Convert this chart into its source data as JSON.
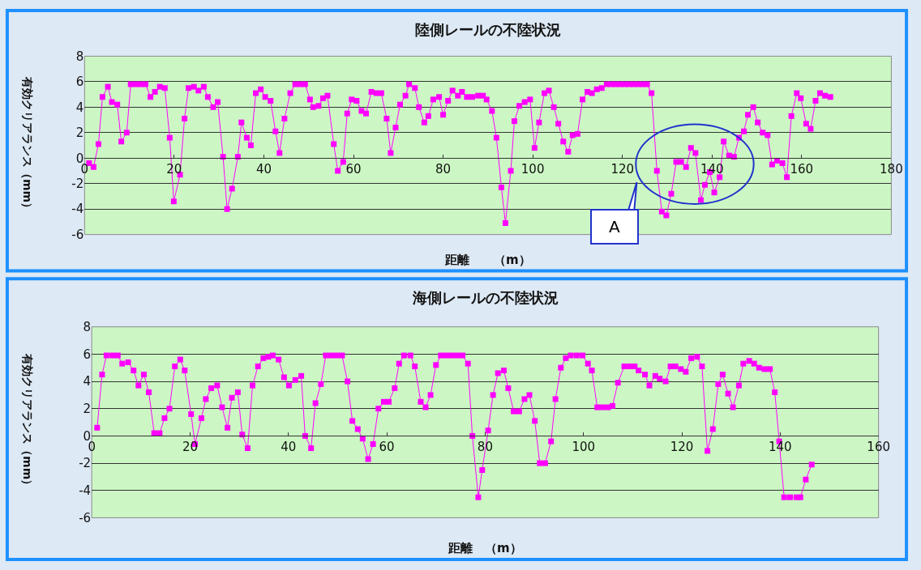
{
  "chart_data": [
    {
      "type": "line",
      "title": "陸側レールの不陸状況",
      "xlabel": "距離　　（m）",
      "ylabel": "有効クリアランス（mm）",
      "xlim": [
        0,
        180
      ],
      "xticks": [
        0,
        20,
        40,
        60,
        80,
        100,
        120,
        140,
        160,
        180
      ],
      "ylim": [
        -6,
        8
      ],
      "yticks": [
        -6,
        -4,
        -2,
        0,
        2,
        4,
        6,
        8
      ],
      "grid": "y",
      "marker": "square",
      "line_style": "solid",
      "annotations": [
        "A"
      ],
      "series": [
        {
          "color": "#ff00ff",
          "x": [
            1,
            2,
            3.1,
            4,
            5.2,
            6.1,
            7.3,
            8.2,
            9.4,
            10.3,
            11.4,
            12.5,
            13.6,
            14.7,
            15.7,
            16.8,
            17.9,
            19,
            19.9,
            21.3,
            22.3,
            23.2,
            24.4,
            25.4,
            26.6,
            27.5,
            28.7,
            29.7,
            30.9,
            31.8,
            32.9,
            34.2,
            35,
            36.2,
            37.1,
            38.2,
            39.3,
            40.3,
            41.5,
            42.6,
            43.5,
            44.6,
            45.9,
            47,
            48.1,
            49.2,
            50.3,
            51,
            52.2,
            53.2,
            54.2,
            55.6,
            56.5,
            57.7,
            58.6,
            59.6,
            60.7,
            61.8,
            62.8,
            64,
            65.1,
            66.2,
            67.4,
            68.3,
            69.4,
            70.4,
            71.6,
            72.4,
            73.7,
            74.6,
            75.8,
            76.7,
            77.8,
            79.1,
            80,
            81.1,
            82.1,
            83.3,
            84.2,
            85.3,
            86.5,
            87.8,
            88.9,
            89.7,
            90.9,
            91.9,
            93,
            93.9,
            95.1,
            95.9,
            97,
            98.2,
            99.4,
            100.4,
            101.4,
            102.6,
            103.6,
            104.7,
            105.7,
            106.8,
            107.9,
            108.9,
            110,
            111.1,
            112.2,
            113.2,
            114.3,
            115.4,
            116.5,
            117.5,
            118.5,
            119.5,
            120.5,
            121.5,
            122.5,
            123.5,
            124.5,
            125.5,
            126.5,
            127.7,
            128.8,
            129.8,
            130.9,
            132,
            133.1,
            134.2,
            135.3,
            136.3,
            137.5,
            138.4,
            139.5,
            140.5,
            141.7,
            142.6,
            143.8,
            144.9,
            146,
            147.1,
            148,
            149.2,
            150.2,
            151.3,
            152.4,
            153.4,
            154.5,
            155.7,
            156.7,
            157.7,
            158.9,
            159.8,
            161,
            162,
            163.1,
            164.1,
            165.2,
            166.4
          ],
          "values": [
            -0.4,
            -0.7,
            1.1,
            4.8,
            5.6,
            4.4,
            4.2,
            1.3,
            2.0,
            5.8,
            5.8,
            5.8,
            5.8,
            4.8,
            5.2,
            5.6,
            5.5,
            1.6,
            -3.4,
            -1.3,
            3.1,
            5.5,
            5.6,
            5.3,
            5.6,
            4.8,
            4.0,
            4.4,
            0.1,
            -4.0,
            -2.4,
            0.1,
            2.8,
            1.6,
            1.0,
            5.1,
            5.4,
            4.8,
            4.5,
            2.1,
            0.4,
            3.1,
            5.1,
            5.8,
            5.8,
            5.8,
            4.6,
            4.0,
            4.1,
            4.7,
            4.9,
            1.1,
            -1.0,
            -0.3,
            3.5,
            4.6,
            4.5,
            3.7,
            3.5,
            5.2,
            5.1,
            5.1,
            3.1,
            0.4,
            2.4,
            4.2,
            4.9,
            5.8,
            5.5,
            4.0,
            2.8,
            3.3,
            4.6,
            4.8,
            3.4,
            4.5,
            5.3,
            4.9,
            5.2,
            4.8,
            4.8,
            4.9,
            4.9,
            4.6,
            3.7,
            1.6,
            -2.3,
            -5.1,
            -1.0,
            2.9,
            4.1,
            4.4,
            4.6,
            0.8,
            2.8,
            5.1,
            5.3,
            4.0,
            2.7,
            1.3,
            0.5,
            1.8,
            1.9,
            4.6,
            5.2,
            5.1,
            5.4,
            5.5,
            5.8,
            5.8,
            5.8,
            5.8,
            5.8,
            5.8,
            5.8,
            5.8,
            5.8,
            5.8,
            5.1,
            -1.0,
            -4.2,
            -4.5,
            -2.8,
            -0.3,
            -0.3,
            -0.7,
            0.8,
            0.4,
            -3.3,
            -2.1,
            -1.1,
            -2.7,
            -1.5,
            1.3,
            0.2,
            0.1,
            1.6,
            2.1,
            3.4,
            4.0,
            2.8,
            2.0,
            1.8,
            -0.5,
            -0.2,
            -0.4,
            -1.5,
            3.3,
            5.1,
            4.7,
            2.7,
            2.3,
            4.5,
            5.1,
            4.9,
            4.8
          ]
        }
      ]
    },
    {
      "type": "line",
      "title": "海側レールの不陸状況",
      "xlabel": "距離　（m）",
      "ylabel": "有効クリアランス（mm）",
      "xlim": [
        0,
        160
      ],
      "xticks": [
        0,
        20,
        40,
        60,
        80,
        100,
        120,
        140,
        160
      ],
      "ylim": [
        -6,
        8
      ],
      "yticks": [
        -6,
        -4,
        -2,
        0,
        2,
        4,
        6,
        8
      ],
      "grid": "y",
      "marker": "square",
      "line_style": "solid",
      "series": [
        {
          "color": "#ff00ff",
          "x": [
            1.1,
            2.1,
            3,
            4.2,
            5.3,
            6.2,
            7.4,
            8.5,
            9.5,
            10.6,
            11.6,
            12.7,
            13.8,
            14.8,
            15.8,
            16.9,
            18,
            18.9,
            20.2,
            21,
            22.3,
            23.2,
            24.3,
            25.5,
            26.5,
            27.6,
            28.5,
            29.7,
            30.6,
            31.7,
            32.7,
            33.8,
            34.9,
            35.9,
            36.8,
            38,
            39.1,
            40.1,
            41.4,
            42.6,
            43.4,
            44.6,
            45.5,
            46.6,
            47.6,
            48.7,
            49.8,
            50.9,
            52,
            53,
            54.1,
            55.1,
            56.2,
            57.2,
            58.3,
            59.4,
            60.4,
            61.6,
            62.5,
            63.5,
            64.8,
            65.7,
            66.9,
            67.9,
            68.9,
            70,
            71,
            72.1,
            73.2,
            74.3,
            75.4,
            76.5,
            77.4,
            78.6,
            79.4,
            80.6,
            81.6,
            82.6,
            83.8,
            84.7,
            85.8,
            86.9,
            88,
            89,
            90.1,
            91.1,
            92.2,
            93.4,
            94.3,
            95.4,
            96.4,
            97.4,
            98.6,
            99.8,
            100.9,
            101.7,
            102.8,
            103.9,
            105,
            105.9,
            107,
            108.3,
            109.4,
            110.4,
            111.2,
            112.5,
            113.4,
            114.6,
            115.5,
            116.7,
            117.7,
            118.7,
            119.8,
            120.8,
            121.9,
            123.1,
            124.1,
            125.2,
            126.3,
            127.4,
            128.3,
            129.4,
            130.4,
            131.6,
            132.5,
            133.7,
            134.7,
            135.7,
            136.8,
            137.9,
            138.9,
            139.8,
            140.8,
            142,
            143.3,
            144.1,
            145.2,
            146.4
          ],
          "values": [
            0.6,
            4.5,
            5.9,
            5.9,
            5.9,
            5.3,
            5.4,
            4.8,
            3.7,
            4.5,
            3.2,
            0.2,
            0.2,
            1.3,
            2.0,
            5.1,
            5.6,
            4.8,
            1.6,
            -0.6,
            1.3,
            2.7,
            3.5,
            3.7,
            2.1,
            0.6,
            2.8,
            3.2,
            0.1,
            -0.9,
            3.7,
            5.1,
            5.7,
            5.8,
            5.9,
            5.6,
            4.3,
            3.7,
            4.1,
            4.4,
            0.0,
            -0.9,
            2.4,
            3.8,
            5.9,
            5.9,
            5.9,
            5.9,
            4.0,
            1.1,
            0.5,
            -0.2,
            -1.7,
            -0.6,
            2.0,
            2.5,
            2.5,
            3.5,
            5.3,
            5.9,
            5.9,
            5.1,
            2.5,
            2.1,
            3.0,
            5.2,
            5.9,
            5.9,
            5.9,
            5.9,
            5.9,
            5.3,
            0.0,
            -4.5,
            -2.5,
            0.4,
            3.0,
            4.6,
            4.8,
            3.5,
            1.8,
            1.8,
            2.7,
            3.0,
            1.1,
            -2.0,
            -2.0,
            -0.4,
            2.7,
            5.0,
            5.7,
            5.9,
            5.9,
            5.9,
            5.3,
            4.8,
            2.1,
            2.1,
            2.1,
            2.2,
            3.9,
            5.1,
            5.1,
            5.1,
            4.8,
            4.5,
            3.7,
            4.4,
            4.2,
            4.0,
            5.1,
            5.1,
            4.9,
            4.7,
            5.7,
            5.8,
            5.1,
            -1.1,
            0.5,
            3.8,
            4.5,
            3.1,
            2.1,
            3.7,
            5.3,
            5.5,
            5.3,
            5.0,
            4.9,
            4.9,
            3.2,
            -0.4,
            -4.5,
            -4.5,
            -4.5,
            -4.5,
            -3.2,
            -2.1
          ]
        }
      ]
    }
  ]
}
